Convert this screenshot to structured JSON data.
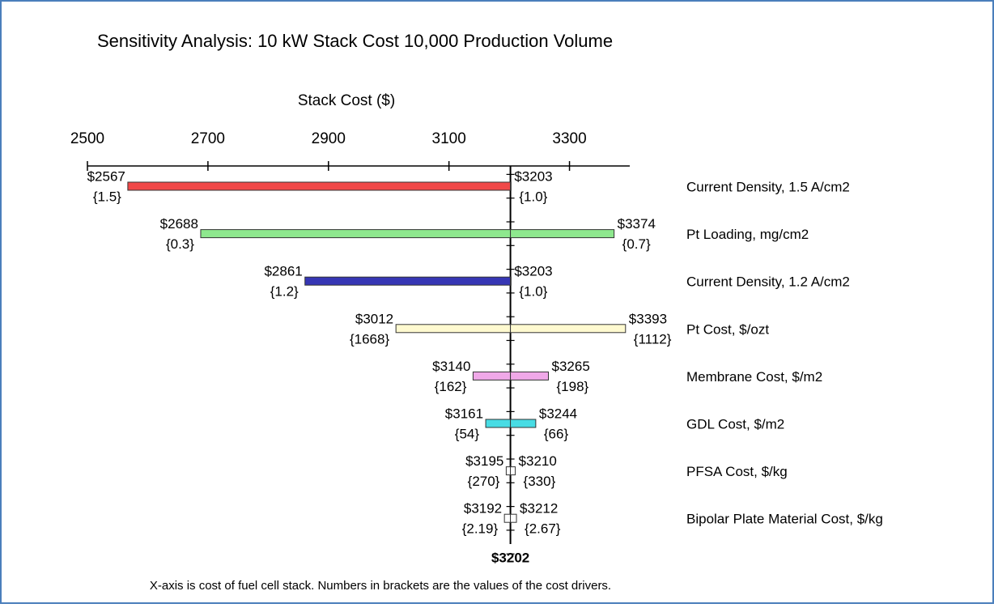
{
  "chart_data": {
    "type": "tornado",
    "title": "Sensitivity Analysis: 10 kW Stack Cost 10,000 Production Volume",
    "xlabel": "Stack Cost ($)",
    "xlim": [
      2500,
      3400
    ],
    "xticks": [
      2500,
      2700,
      2900,
      3100,
      3300
    ],
    "base": 3202,
    "base_label": "$3202",
    "categories": [
      "Current Density,  1.5 A/cm2",
      "Pt Loading, mg/cm2",
      "Current Density, 1.2 A/cm2",
      "Pt Cost, $/ozt",
      "Membrane Cost, $/m2",
      "GDL Cost, $/m2",
      "PFSA Cost, $/kg",
      "Bipolar Plate Material Cost, $/kg"
    ],
    "low": [
      2567,
      2688,
      2861,
      3012,
      3140,
      3161,
      3195,
      3192
    ],
    "high": [
      3203,
      3374,
      3203,
      3393,
      3265,
      3244,
      3210,
      3212
    ],
    "low_labels": [
      "$2567",
      "$2688",
      "$2861",
      "$3012",
      "$3140",
      "$3161",
      "$3195",
      "$3192"
    ],
    "high_labels": [
      "$3203",
      "$3374",
      "$3203",
      "$3393",
      "$3265",
      "$3244",
      "$3210",
      "$3212"
    ],
    "low_drivers": [
      "{1.5}",
      "{0.3}",
      "{1.2}",
      "{1668}",
      "{162}",
      "{54}",
      "{270}",
      "{2.19}"
    ],
    "high_drivers": [
      "{1.0}",
      "{0.7}",
      "{1.0}",
      "{1112}",
      "{198}",
      "{66}",
      "{330}",
      "{2.67}"
    ],
    "colors": [
      "#f04848",
      "#8ee88e",
      "#3636b4",
      "#fffad0",
      "#f0a8e8",
      "#48dce4",
      "#ffffff",
      "#ffffff"
    ],
    "footnote": "X-axis is cost of fuel cell stack. Numbers in brackets are the values of the cost drivers."
  }
}
